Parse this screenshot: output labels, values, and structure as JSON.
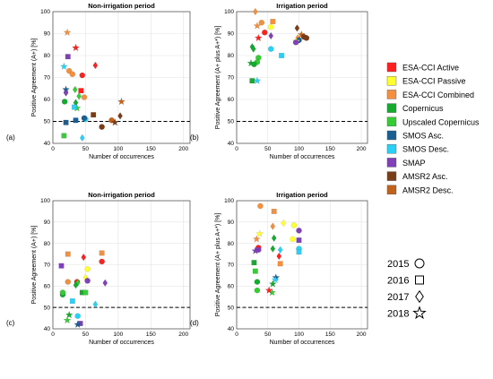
{
  "figure": {
    "y_label": "Positive Agreement (A+) [%]",
    "y_label_irrigation": "Positive Agreement (A+ plus A+*) [%]",
    "x_label": "Number of occurrences"
  },
  "legend": {
    "products": [
      {
        "name": "ESA-CCI Active",
        "color": "#ff2020"
      },
      {
        "name": "ESA-CCI Passive",
        "color": "#ffff30"
      },
      {
        "name": "ESA-CCI Combined",
        "color": "#f39040"
      },
      {
        "name": "Copernicus",
        "color": "#15aa30"
      },
      {
        "name": "Upscaled Copernicus",
        "color": "#35cc35"
      },
      {
        "name": "SMOS Asc.",
        "color": "#1b5f92"
      },
      {
        "name": "SMOS Desc.",
        "color": "#2ad0f5"
      },
      {
        "name": "SMAP",
        "color": "#8040b8"
      },
      {
        "name": "AMSR2 Asc.",
        "color": "#7a3d18"
      },
      {
        "name": "AMSR2 Desc.",
        "color": "#c0621b"
      }
    ],
    "years": [
      {
        "label": "2015",
        "marker": "circle"
      },
      {
        "label": "2016",
        "marker": "square"
      },
      {
        "label": "2017",
        "marker": "diamond"
      },
      {
        "label": "2018",
        "marker": "star"
      }
    ]
  },
  "chart_data": [
    {
      "type": "scatter",
      "panel": "(a)",
      "title": "Non-irrigation period",
      "xlim": [
        0,
        210
      ],
      "ylim": [
        40,
        100
      ],
      "xticks": [
        0,
        50,
        100,
        150,
        200
      ],
      "yticks": [
        40,
        50,
        60,
        70,
        80,
        90,
        100
      ],
      "ylabel_key": "y_label",
      "reference_line_y": 50,
      "grid": true,
      "points": [
        {
          "x": 22,
          "y": 90.5,
          "c": 2,
          "m": "star"
        },
        {
          "x": 35,
          "y": 83.5,
          "c": 0,
          "m": "star"
        },
        {
          "x": 23,
          "y": 79.5,
          "c": 7,
          "m": "square"
        },
        {
          "x": 17,
          "y": 75,
          "c": 6,
          "m": "star"
        },
        {
          "x": 65,
          "y": 75.5,
          "c": 0,
          "m": "diamond"
        },
        {
          "x": 25,
          "y": 73,
          "c": 2,
          "m": "circle"
        },
        {
          "x": 30,
          "y": 71.5,
          "c": 2,
          "m": "circle"
        },
        {
          "x": 45,
          "y": 71,
          "c": 0,
          "m": "circle"
        },
        {
          "x": 20,
          "y": 64.5,
          "c": 5,
          "m": "star"
        },
        {
          "x": 20,
          "y": 63,
          "c": 7,
          "m": "diamond"
        },
        {
          "x": 34,
          "y": 64.5,
          "c": 4,
          "m": "diamond"
        },
        {
          "x": 43,
          "y": 64,
          "c": 0,
          "m": "square"
        },
        {
          "x": 40,
          "y": 61.5,
          "c": 4,
          "m": "diamond"
        },
        {
          "x": 48,
          "y": 61,
          "c": 2,
          "m": "circle"
        },
        {
          "x": 18,
          "y": 59,
          "c": 3,
          "m": "circle"
        },
        {
          "x": 35,
          "y": 58.5,
          "c": 3,
          "m": "diamond"
        },
        {
          "x": 37,
          "y": 56,
          "c": 4,
          "m": "star"
        },
        {
          "x": 33,
          "y": 56.5,
          "c": 6,
          "m": "square"
        },
        {
          "x": 62,
          "y": 53,
          "c": 8,
          "m": "square"
        },
        {
          "x": 105,
          "y": 59,
          "c": 9,
          "m": "star"
        },
        {
          "x": 103,
          "y": 52.5,
          "c": 8,
          "m": "diamond"
        },
        {
          "x": 90,
          "y": 50.5,
          "c": 9,
          "m": "circle"
        },
        {
          "x": 95,
          "y": 49.5,
          "c": 8,
          "m": "star"
        },
        {
          "x": 75,
          "y": 47.5,
          "c": 8,
          "m": "circle"
        },
        {
          "x": 35,
          "y": 50.5,
          "c": 5,
          "m": "square"
        },
        {
          "x": 50,
          "y": 51,
          "c": 6,
          "m": "circle"
        },
        {
          "x": 48,
          "y": 51.5,
          "c": 5,
          "m": "circle"
        },
        {
          "x": 20,
          "y": 49.5,
          "c": 5,
          "m": "square"
        },
        {
          "x": 17,
          "y": 43.5,
          "c": 4,
          "m": "square"
        },
        {
          "x": 45,
          "y": 42.5,
          "c": 6,
          "m": "diamond"
        }
      ]
    },
    {
      "type": "scatter",
      "panel": "(b)",
      "title": "Irrigation period",
      "xlim": [
        0,
        210
      ],
      "ylim": [
        40,
        100
      ],
      "xticks": [
        0,
        50,
        100,
        150,
        200
      ],
      "yticks": [
        40,
        50,
        60,
        70,
        80,
        90,
        100
      ],
      "ylabel_key": "y_label_irrigation",
      "reference_line_y": 50,
      "grid": true,
      "points": [
        {
          "x": 30,
          "y": 100,
          "c": 2,
          "m": "diamond"
        },
        {
          "x": 33,
          "y": 93.5,
          "c": 2,
          "m": "star"
        },
        {
          "x": 40,
          "y": 95,
          "c": 2,
          "m": "circle"
        },
        {
          "x": 58,
          "y": 95.5,
          "c": 2,
          "m": "square"
        },
        {
          "x": 55,
          "y": 93,
          "c": 1,
          "m": "circle"
        },
        {
          "x": 45,
          "y": 90.5,
          "c": 0,
          "m": "circle"
        },
        {
          "x": 55,
          "y": 89,
          "c": 7,
          "m": "diamond"
        },
        {
          "x": 35,
          "y": 88,
          "c": 0,
          "m": "star"
        },
        {
          "x": 97,
          "y": 92.5,
          "c": 8,
          "m": "diamond"
        },
        {
          "x": 98,
          "y": 88,
          "c": 2,
          "m": "diamond"
        },
        {
          "x": 104,
          "y": 89.5,
          "c": 9,
          "m": "star"
        },
        {
          "x": 108,
          "y": 88.5,
          "c": 8,
          "m": "circle"
        },
        {
          "x": 112,
          "y": 88,
          "c": 8,
          "m": "circle"
        },
        {
          "x": 100,
          "y": 87,
          "c": 5,
          "m": "circle"
        },
        {
          "x": 96,
          "y": 86.5,
          "c": 1,
          "m": "star"
        },
        {
          "x": 95,
          "y": 86,
          "c": 7,
          "m": "circle"
        },
        {
          "x": 25,
          "y": 84,
          "c": 3,
          "m": "diamond"
        },
        {
          "x": 27,
          "y": 83,
          "c": 3,
          "m": "diamond"
        },
        {
          "x": 55,
          "y": 83,
          "c": 6,
          "m": "circle"
        },
        {
          "x": 72,
          "y": 80,
          "c": 6,
          "m": "square"
        },
        {
          "x": 35,
          "y": 79,
          "c": 4,
          "m": "circle"
        },
        {
          "x": 33,
          "y": 77,
          "c": 4,
          "m": "circle"
        },
        {
          "x": 23,
          "y": 76.5,
          "c": 3,
          "m": "star"
        },
        {
          "x": 28,
          "y": 76,
          "c": 3,
          "m": "circle"
        },
        {
          "x": 25,
          "y": 68.5,
          "c": 3,
          "m": "square"
        },
        {
          "x": 33,
          "y": 68.5,
          "c": 6,
          "m": "star"
        }
      ]
    },
    {
      "type": "scatter",
      "panel": "(c)",
      "title": "Non-irrigation period",
      "xlim": [
        0,
        210
      ],
      "ylim": [
        40,
        100
      ],
      "xticks": [
        0,
        50,
        100,
        150,
        200
      ],
      "yticks": [
        40,
        50,
        60,
        70,
        80,
        90,
        100
      ],
      "ylabel_key": "y_label",
      "reference_line_y": 50,
      "grid": true,
      "points": [
        {
          "x": 23,
          "y": 75,
          "c": 2,
          "m": "square"
        },
        {
          "x": 75,
          "y": 75.5,
          "c": 2,
          "m": "square"
        },
        {
          "x": 47,
          "y": 73.5,
          "c": 0,
          "m": "diamond"
        },
        {
          "x": 75,
          "y": 71.5,
          "c": 0,
          "m": "circle"
        },
        {
          "x": 13,
          "y": 69.5,
          "c": 7,
          "m": "square"
        },
        {
          "x": 53,
          "y": 68,
          "c": 1,
          "m": "circle"
        },
        {
          "x": 50,
          "y": 64,
          "c": 1,
          "m": "diamond"
        },
        {
          "x": 23,
          "y": 62,
          "c": 2,
          "m": "circle"
        },
        {
          "x": 37,
          "y": 62,
          "c": 0,
          "m": "circle"
        },
        {
          "x": 53,
          "y": 62.5,
          "c": 7,
          "m": "circle"
        },
        {
          "x": 38,
          "y": 61.5,
          "c": 4,
          "m": "diamond"
        },
        {
          "x": 80,
          "y": 61.5,
          "c": 7,
          "m": "diamond"
        },
        {
          "x": 35,
          "y": 60.5,
          "c": 3,
          "m": "diamond"
        },
        {
          "x": 15,
          "y": 56,
          "c": 3,
          "m": "circle"
        },
        {
          "x": 15,
          "y": 57,
          "c": 4,
          "m": "circle"
        },
        {
          "x": 45,
          "y": 57,
          "c": 3,
          "m": "square"
        },
        {
          "x": 50,
          "y": 57,
          "c": 4,
          "m": "square"
        },
        {
          "x": 30,
          "y": 53,
          "c": 6,
          "m": "square"
        },
        {
          "x": 65,
          "y": 51.5,
          "c": 6,
          "m": "diamond"
        },
        {
          "x": 25,
          "y": 46.5,
          "c": 3,
          "m": "star"
        },
        {
          "x": 38,
          "y": 46,
          "c": 6,
          "m": "circle"
        },
        {
          "x": 22,
          "y": 44,
          "c": 4,
          "m": "star"
        },
        {
          "x": 42,
          "y": 42.5,
          "c": 7,
          "m": "square"
        },
        {
          "x": 38,
          "y": 42,
          "c": 5,
          "m": "star"
        }
      ]
    },
    {
      "type": "scatter",
      "panel": "(d)",
      "title": "Irrigation period",
      "xlim": [
        0,
        210
      ],
      "ylim": [
        40,
        100
      ],
      "xticks": [
        0,
        50,
        100,
        150,
        200
      ],
      "yticks": [
        40,
        50,
        60,
        70,
        80,
        90,
        100
      ],
      "ylabel_key": "y_label_irrigation",
      "reference_line_y": 50,
      "grid": true,
      "points": [
        {
          "x": 38,
          "y": 97.5,
          "c": 2,
          "m": "circle"
        },
        {
          "x": 60,
          "y": 95,
          "c": 2,
          "m": "square"
        },
        {
          "x": 75,
          "y": 89.5,
          "c": 1,
          "m": "diamond"
        },
        {
          "x": 92,
          "y": 88.5,
          "c": 1,
          "m": "circle"
        },
        {
          "x": 58,
          "y": 88,
          "c": 2,
          "m": "diamond"
        },
        {
          "x": 100,
          "y": 86,
          "c": 7,
          "m": "circle"
        },
        {
          "x": 37,
          "y": 84.5,
          "c": 1,
          "m": "star"
        },
        {
          "x": 60,
          "y": 82.5,
          "c": 3,
          "m": "diamond"
        },
        {
          "x": 90,
          "y": 82,
          "c": 1,
          "m": "circle"
        },
        {
          "x": 100,
          "y": 81.5,
          "c": 7,
          "m": "square"
        },
        {
          "x": 32,
          "y": 82,
          "c": 2,
          "m": "star"
        },
        {
          "x": 35,
          "y": 78,
          "c": 0,
          "m": "circle"
        },
        {
          "x": 35,
          "y": 77,
          "c": 7,
          "m": "circle"
        },
        {
          "x": 58,
          "y": 77.5,
          "c": 3,
          "m": "diamond"
        },
        {
          "x": 70,
          "y": 77,
          "c": 6,
          "m": "diamond"
        },
        {
          "x": 100,
          "y": 77.5,
          "c": 6,
          "m": "circle"
        },
        {
          "x": 100,
          "y": 76,
          "c": 6,
          "m": "square"
        },
        {
          "x": 30,
          "y": 76.5,
          "c": 7,
          "m": "star"
        },
        {
          "x": 68,
          "y": 74,
          "c": 0,
          "m": "diamond"
        },
        {
          "x": 28,
          "y": 71,
          "c": 3,
          "m": "square"
        },
        {
          "x": 70,
          "y": 70.5,
          "c": 2,
          "m": "square"
        },
        {
          "x": 30,
          "y": 67,
          "c": 4,
          "m": "square"
        },
        {
          "x": 63,
          "y": 64,
          "c": 5,
          "m": "star"
        },
        {
          "x": 62,
          "y": 63,
          "c": 6,
          "m": "star"
        },
        {
          "x": 33,
          "y": 62,
          "c": 3,
          "m": "circle"
        },
        {
          "x": 58,
          "y": 61,
          "c": 3,
          "m": "star"
        },
        {
          "x": 33,
          "y": 58,
          "c": 4,
          "m": "circle"
        },
        {
          "x": 57,
          "y": 57,
          "c": 4,
          "m": "star"
        },
        {
          "x": 52,
          "y": 58,
          "c": 0,
          "m": "star"
        }
      ]
    }
  ]
}
